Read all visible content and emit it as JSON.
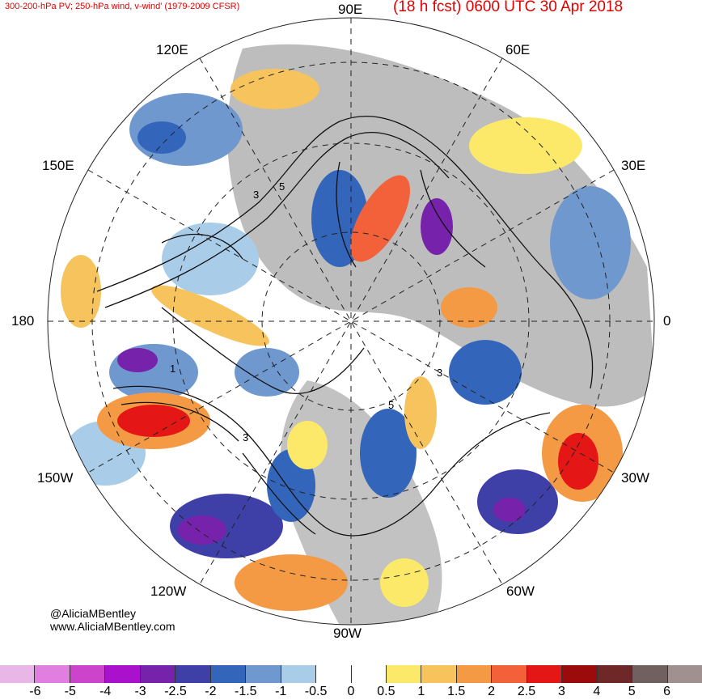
{
  "header": {
    "left_title": "300-200-hPa PV; 250-hPa wind, v-wind' (1979-2009 CFSR)",
    "right_title": "(18 h fcst) 0600 UTC 30 Apr 2018"
  },
  "longitude_labels": {
    "e90": "90E",
    "e120": "120E",
    "e60": "60E",
    "e150": "150E",
    "e30": "30E",
    "d180": "180",
    "d0": "0",
    "w150": "150W",
    "w30": "30W",
    "w120": "120W",
    "w60": "60W",
    "w90": "90W"
  },
  "credits": {
    "twitter": "@AliciaMBentley",
    "website": "www.AliciaMBentley.com"
  },
  "colorbar": {
    "colors": [
      "#e8b7e8",
      "#e07fe0",
      "#cc44cc",
      "#aa11cc",
      "#7722aa",
      "#3f3fa8",
      "#3366bb",
      "#6f98cf",
      "#a9cce8",
      "#ffffff",
      "#ffffff",
      "#fce96a",
      "#f6c35c",
      "#f49a45",
      "#f2613a",
      "#e51616",
      "#9c0b0b",
      "#6e2828",
      "#706060",
      "#a09090"
    ],
    "labels": [
      "-6",
      "-5",
      "-4",
      "-3",
      "-2.5",
      "-2",
      "-1.5",
      "-1",
      "-0.5",
      "0",
      "0.5",
      "1",
      "1.5",
      "2",
      "2.5",
      "3",
      "4",
      "5",
      "6"
    ]
  }
}
